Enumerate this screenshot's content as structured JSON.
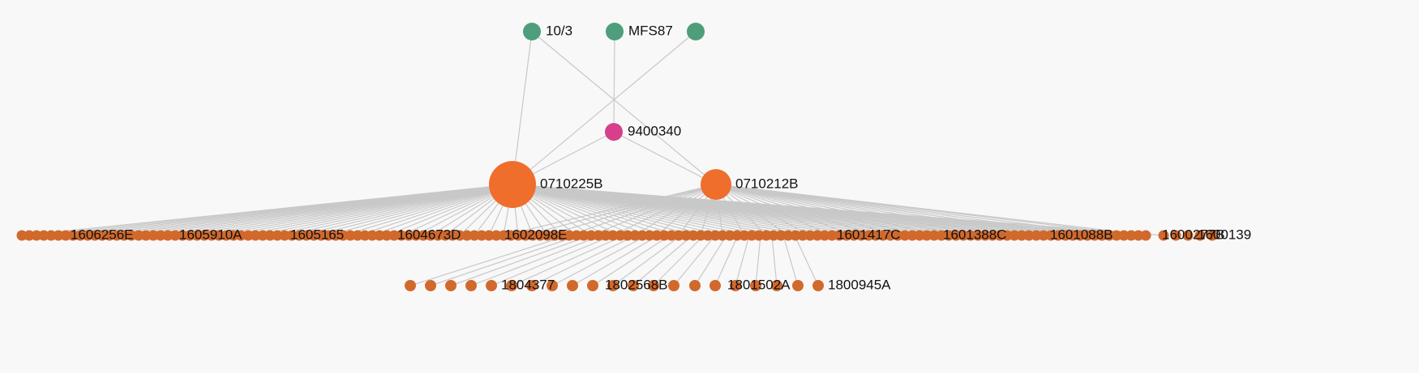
{
  "colors": {
    "background": "#f8f8f8",
    "edge": "#c8c8c8",
    "top_group": "#4e9e7c",
    "center_node": "#d63f8c",
    "hub_nodes": "#ef6e2c",
    "row_nodes": "#d2692c",
    "label": "#111111"
  },
  "graph": {
    "top_nodes": [
      {
        "id": "t1",
        "label": "10/3"
      },
      {
        "id": "t2",
        "label": "MFS87"
      },
      {
        "id": "t3",
        "label": ""
      }
    ],
    "center_node": {
      "id": "c1",
      "label": "9400340"
    },
    "hubs": [
      {
        "id": "h1",
        "label": "0710225B",
        "size": "large"
      },
      {
        "id": "h2",
        "label": "0710212B",
        "size": "medium"
      }
    ],
    "row1_labels": [
      "1606256E",
      "1605910A",
      "1605165",
      "1604673D",
      "1602098E",
      "1601417C",
      "1601388C",
      "1601088B",
      "1600277B",
      "1600139"
    ],
    "row2_labels": [
      "1804377",
      "1802568B",
      "1801502A",
      "1800945A"
    ],
    "edges": [
      [
        "t1",
        "h1"
      ],
      [
        "t1",
        "h2"
      ],
      [
        "t2",
        "c1"
      ],
      [
        "t3",
        "h1"
      ],
      [
        "c1",
        "h1"
      ],
      [
        "c1",
        "h2"
      ]
    ]
  }
}
